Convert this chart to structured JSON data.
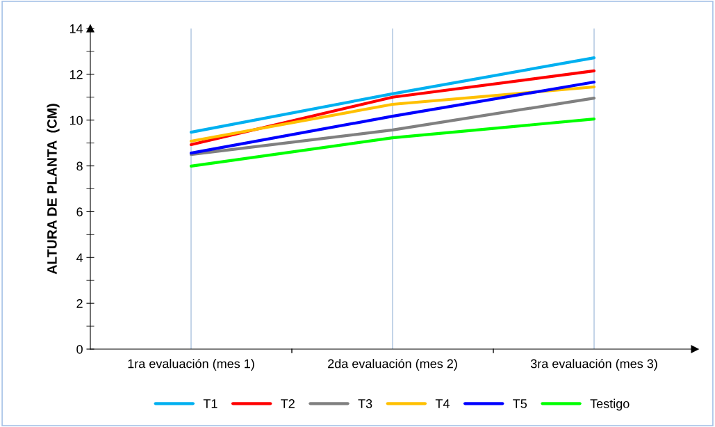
{
  "chart_data": {
    "type": "line",
    "ylabel": "ALTURA DE PLANTA  (CM)",
    "categories": [
      "1ra evaluación (mes 1)",
      "2da evaluación (mes 2)",
      "3ra evaluación (mes 3)"
    ],
    "series": [
      {
        "name": "T1",
        "color": "#00b0f0",
        "values": [
          9.47,
          11.15,
          12.72
        ]
      },
      {
        "name": "T2",
        "color": "#ff0000",
        "values": [
          8.93,
          11.0,
          12.15
        ]
      },
      {
        "name": "T3",
        "color": "#808080",
        "values": [
          8.5,
          9.57,
          10.96
        ]
      },
      {
        "name": "T4",
        "color": "#ffc000",
        "values": [
          9.08,
          10.69,
          11.45
        ]
      },
      {
        "name": "T5",
        "color": "#0000ff",
        "values": [
          8.56,
          10.17,
          11.66
        ]
      },
      {
        "name": "Testigo",
        "color": "#00ff00",
        "values": [
          7.99,
          9.23,
          10.05
        ]
      }
    ],
    "ylim": [
      0,
      14
    ],
    "yticks": [
      0,
      2,
      4,
      6,
      8,
      10,
      12,
      14
    ],
    "grid": "x",
    "legend": "bottom",
    "marker": "none",
    "line_style": "solid"
  }
}
